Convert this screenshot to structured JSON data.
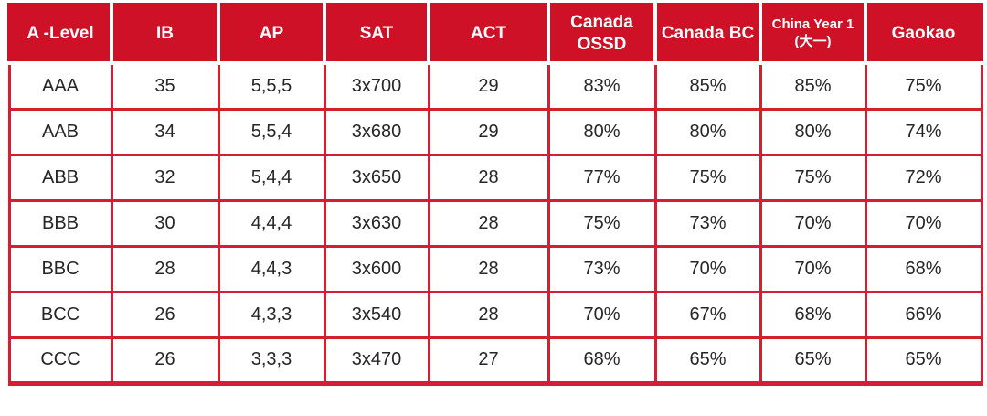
{
  "colors": {
    "header_bg": "#ce1126",
    "grid_line": "#d41f33",
    "header_text": "#ffffff",
    "cell_text": "#262626",
    "page_bg": "#ffffff"
  },
  "table": {
    "columns": [
      {
        "key": "a-level",
        "label": "A -Level"
      },
      {
        "key": "ib",
        "label": "IB"
      },
      {
        "key": "ap",
        "label": "AP"
      },
      {
        "key": "sat",
        "label": "SAT"
      },
      {
        "key": "act",
        "label": "ACT"
      },
      {
        "key": "canada-ossd",
        "label": "Canada OSSD"
      },
      {
        "key": "canada-bc",
        "label": "Canada BC"
      },
      {
        "key": "china-year1",
        "label": "China Year 1 (大一)"
      },
      {
        "key": "gaokao",
        "label": "Gaokao"
      }
    ],
    "rows": [
      [
        "AAA",
        "35",
        "5,5,5",
        "3x700",
        "29",
        "83%",
        "85%",
        "85%",
        "75%"
      ],
      [
        "AAB",
        "34",
        "5,5,4",
        "3x680",
        "29",
        "80%",
        "80%",
        "80%",
        "74%"
      ],
      [
        "ABB",
        "32",
        "5,4,4",
        "3x650",
        "28",
        "77%",
        "75%",
        "75%",
        "72%"
      ],
      [
        "BBB",
        "30",
        "4,4,4",
        "3x630",
        "28",
        "75%",
        "73%",
        "70%",
        "70%"
      ],
      [
        "BBC",
        "28",
        "4,4,3",
        "3x600",
        "28",
        "73%",
        "70%",
        "70%",
        "68%"
      ],
      [
        "BCC",
        "26",
        "4,3,3",
        "3x540",
        "28",
        "70%",
        "67%",
        "68%",
        "66%"
      ],
      [
        "CCC",
        "26",
        "3,3,3",
        "3x470",
        "27",
        "68%",
        "65%",
        "65%",
        "65%"
      ]
    ]
  }
}
